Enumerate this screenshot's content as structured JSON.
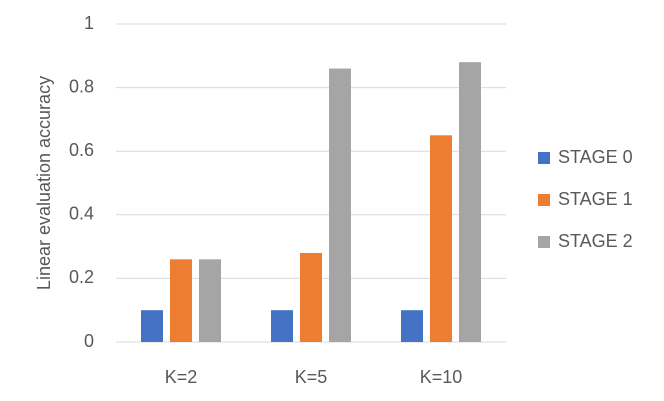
{
  "chart_data": {
    "type": "bar",
    "y_label": "Linear evaluation accuracy",
    "categories": [
      "K=2",
      "K=5",
      "K=10"
    ],
    "series": [
      {
        "name": "STAGE 0",
        "color": "#4472c4",
        "values": [
          0.1,
          0.1,
          0.1
        ]
      },
      {
        "name": "STAGE 1",
        "color": "#ed7d31",
        "values": [
          0.26,
          0.28,
          0.65
        ]
      },
      {
        "name": "STAGE 2",
        "color": "#a5a5a5",
        "values": [
          0.26,
          0.86,
          0.88
        ]
      }
    ],
    "ylim": [
      0,
      1
    ],
    "yticks": [
      0,
      0.2,
      0.4,
      0.6,
      0.8,
      1
    ],
    "grid": true,
    "legend": "right"
  }
}
